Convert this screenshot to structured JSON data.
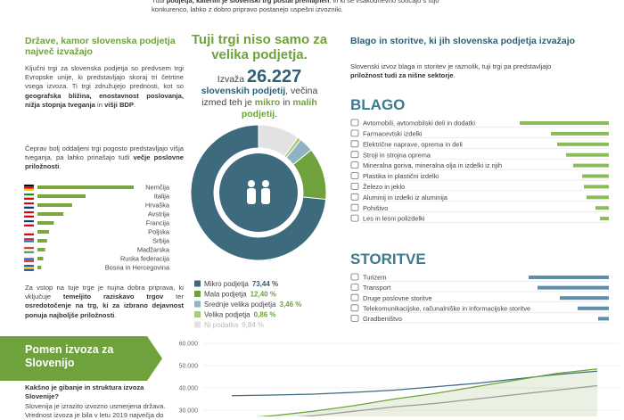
{
  "intro": [
    "Tudi ",
    "podjetja, katerim je slovenski trg postal premajhen",
    ", in ki se vsakodnevno soočajo s tujo konkurenco, lahko z dobro pripravo postanejo uspešni izvozniki."
  ],
  "countries": {
    "title": "Države, kamor slovenska podjetja največ izvažajo",
    "paragraphs": [
      [
        "Ključni trgi za slovenska podjetja so predvsem trgi Evropske unije, ki predstavljajo skoraj tri četrtine vsega izvoza. Ti trgi združujejo prednosti, kot so ",
        "geografska bližina, enostavnost poslovanja, nižja stopnja tveganja",
        " in ",
        "višji BDP",
        "."
      ],
      [
        "Čeprav bolj oddaljeni trgi pogosto predstavljajo višja tveganja, pa lahko prinašajo tudi ",
        "večje poslovne priložnosti",
        "."
      ]
    ],
    "chart_data": {
      "type": "bar",
      "orientation": "horizontal",
      "color": "#7aa83f",
      "categories": [
        "Nemčija",
        "Italija",
        "Hrvaška",
        "Avstrija",
        "Francija",
        "Poljska",
        "Srbija",
        "Madžarska",
        "Ruska federacija",
        "Bosna in Hercegovina"
      ],
      "values": [
        100,
        50,
        36,
        27,
        17,
        12,
        10,
        8,
        6,
        4
      ]
    },
    "note": [
      "Za vstop na tuje trge je nujna dobra priprava, ki vključuje ",
      "temeljito raziskavo trgov",
      " ter ",
      "osredotočenje na trg, ki za izbrano dejavnost ponuja najboljše priložnosti",
      "."
    ]
  },
  "companies": {
    "title": "Tuji trgi niso samo za velika podjetja.",
    "lead": [
      "Izvaža ",
      "26.227",
      "slovenskih podjetij",
      ", večina izmed teh je ",
      "mikro",
      " in ",
      "malih podjetij",
      "."
    ],
    "chart_data": {
      "type": "pie",
      "categories": [
        "Mikro podjetja",
        "Mala podjetja",
        "Srednje velika podjetja",
        "Velika podjetja",
        "Ni podatka"
      ],
      "values": [
        73.44,
        12.4,
        3.46,
        0.86,
        9.84
      ],
      "value_labels": [
        "73,44 %",
        "12,40 %",
        "3,46 %",
        "0,86 %",
        "9,84 %"
      ],
      "colors": [
        "#3d6b7d",
        "#6fa23c",
        "#8fb3c2",
        "#a8cc7a",
        "#e2e2e2"
      ]
    }
  },
  "goods": {
    "title": "Blago in storitve, ki jih slovenska podjetja izvažajo",
    "paragraph": [
      "Slovenski izvoz blaga in storitev je raznolik, tuji trgi pa predstavljajo ",
      "priložnost tudi za nišne sektorje",
      "."
    ],
    "goods_heading": "BLAGO",
    "goods_chart": {
      "type": "bar",
      "orientation": "horizontal",
      "color": "#8dbb5a",
      "categories": [
        "Avtomobili, avtomobilski deli in dodatki",
        "Farmacevtski izdelki",
        "Električne naprave, oprema in deli",
        "Stroji in strojna oprema",
        "Mineralna goriva, mineralna olja in izdelki iz njih",
        "Plastika in plastični izdelki",
        "Železo in jeklo",
        "Aluminij in izdelki iz aluminija",
        "Pohištvo",
        "Les in lesni polizdelki"
      ],
      "values": [
        100,
        65,
        58,
        48,
        40,
        30,
        28,
        25,
        15,
        10
      ]
    },
    "services_heading": "STORITVE",
    "services_chart": {
      "type": "bar",
      "orientation": "horizontal",
      "color": "#5e8ea8",
      "categories": [
        "Turizem",
        "Transport",
        "Druge poslovne storitve",
        "Telekomunikacijske, računalniške in informacijske storitve",
        "Gradbeništvo"
      ],
      "values": [
        90,
        80,
        55,
        35,
        12
      ]
    }
  },
  "importance": {
    "title": "Pomen izvoza za Slovenijo",
    "question": "Kakšno je gibanje in struktura izvoza Slovenije?",
    "text": "Slovenija je izrazito izvozno usmerjena država. Vrednost izvoza je bila v letu 2019 največja do",
    "chart_data": {
      "type": "line",
      "ylim": [
        27200,
        62800
      ],
      "yticks": [
        {
          "value": 60000,
          "label": "60.000"
        },
        {
          "value": 50000,
          "label": "50.000"
        },
        {
          "value": 40000,
          "label": "40.000"
        },
        {
          "value": 30000,
          "label": "30.000"
        }
      ],
      "grid": true,
      "series": [
        {
          "color": "#3d6b86",
          "values": [
            36500,
            36800,
            37200,
            38000,
            39000,
            40500,
            42000,
            44000,
            46000,
            47500
          ]
        },
        {
          "color": "#6fa23c",
          "values": [
            26000,
            27500,
            29500,
            32000,
            35000,
            37500,
            40500,
            43500,
            46500,
            48500
          ]
        },
        {
          "color": "#9a9a9a",
          "values": [
            25000,
            26000,
            27500,
            29500,
            31500,
            33000,
            35000,
            37000,
            39000,
            41000
          ]
        }
      ]
    }
  }
}
